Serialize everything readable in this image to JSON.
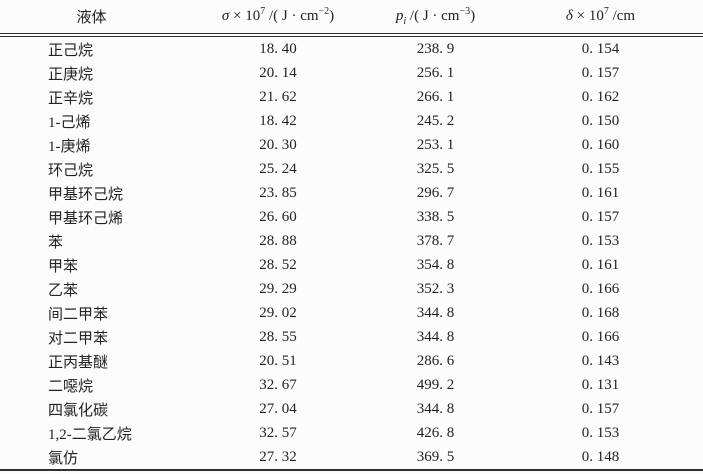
{
  "page": {
    "background": "#fcfcfc",
    "text_color": "#222222",
    "rule_color": "#2e2e2e"
  },
  "table": {
    "columns": [
      {
        "key": "liquid",
        "label_parts": [
          {
            "t": "液体"
          }
        ]
      },
      {
        "key": "sigma",
        "label_parts": [
          {
            "t": "σ",
            "it": true
          },
          {
            "t": " × 10"
          },
          {
            "t": "7",
            "sup": true
          },
          {
            "t": " /( J · cm"
          },
          {
            "t": "−2",
            "sup": true
          },
          {
            "t": ")"
          }
        ]
      },
      {
        "key": "pi",
        "label_parts": [
          {
            "t": "p",
            "it": true
          },
          {
            "t": "i",
            "sub": true,
            "it": true
          },
          {
            "t": " /( J · cm"
          },
          {
            "t": "−3",
            "sup": true
          },
          {
            "t": ")"
          }
        ]
      },
      {
        "key": "delta",
        "label_parts": [
          {
            "t": "δ",
            "it": true
          },
          {
            "t": " × 10"
          },
          {
            "t": "7",
            "sup": true
          },
          {
            "t": " /cm"
          }
        ]
      }
    ],
    "rows": [
      {
        "liquid": "正己烷",
        "sigma": "18. 40",
        "pi": "238. 9",
        "delta": "0. 154"
      },
      {
        "liquid": "正庚烷",
        "sigma": "20. 14",
        "pi": "256. 1",
        "delta": "0. 157"
      },
      {
        "liquid": "正辛烷",
        "sigma": "21. 62",
        "pi": "266. 1",
        "delta": "0. 162"
      },
      {
        "liquid": "1-己烯",
        "sigma": "18. 42",
        "pi": "245. 2",
        "delta": "0. 150"
      },
      {
        "liquid": "1-庚烯",
        "sigma": "20. 30",
        "pi": "253. 1",
        "delta": "0. 160"
      },
      {
        "liquid": "环己烷",
        "sigma": "25. 24",
        "pi": "325. 5",
        "delta": "0. 155"
      },
      {
        "liquid": "甲基环己烷",
        "sigma": "23. 85",
        "pi": "296. 7",
        "delta": "0. 161"
      },
      {
        "liquid": "甲基环己烯",
        "sigma": "26. 60",
        "pi": "338. 5",
        "delta": "0. 157"
      },
      {
        "liquid": "苯",
        "sigma": "28. 88",
        "pi": "378. 7",
        "delta": "0. 153"
      },
      {
        "liquid": "甲苯",
        "sigma": "28. 52",
        "pi": "354. 8",
        "delta": "0. 161"
      },
      {
        "liquid": "乙苯",
        "sigma": "29. 29",
        "pi": "352. 3",
        "delta": "0. 166"
      },
      {
        "liquid": "间二甲苯",
        "sigma": "29. 02",
        "pi": "344. 8",
        "delta": "0. 168"
      },
      {
        "liquid": "对二甲苯",
        "sigma": "28. 55",
        "pi": "344. 8",
        "delta": "0. 166"
      },
      {
        "liquid": "正丙基醚",
        "sigma": "20. 51",
        "pi": "286. 6",
        "delta": "0. 143"
      },
      {
        "liquid": "二噁烷",
        "sigma": "32. 67",
        "pi": "499. 2",
        "delta": "0. 131"
      },
      {
        "liquid": "四氯化碳",
        "sigma": "27. 04",
        "pi": "344. 8",
        "delta": "0. 157"
      },
      {
        "liquid": "1,2-二氯乙烷",
        "sigma": "32. 57",
        "pi": "426. 8",
        "delta": "0. 153"
      },
      {
        "liquid": "氯仿",
        "sigma": "27. 32",
        "pi": "369. 5",
        "delta": "0. 148"
      }
    ]
  }
}
